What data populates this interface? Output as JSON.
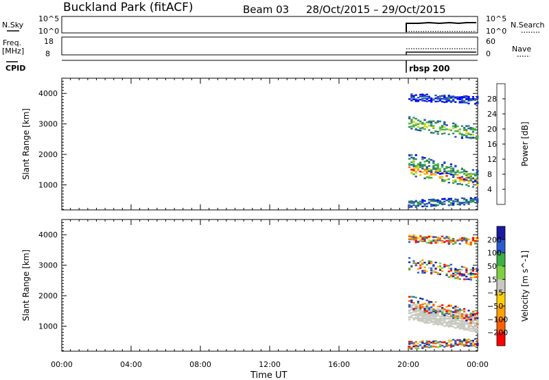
{
  "header": {
    "site_title": "Buckland Park (fitACF)",
    "beam": "Beam 03",
    "date_range": "28/Oct/2015 – 29/Oct/2015"
  },
  "strips": {
    "nsky_label": "N.Sky",
    "nsky_top": "10^5",
    "nsky_bottom": "10^0",
    "nsearch_label": "N.Search",
    "nsearch_top": "10^5",
    "nsearch_bottom": "10^0",
    "freq_label": "Freq.",
    "freq_unit": "[MHz]",
    "freq_top": "18",
    "freq_bottom": "8",
    "nave_label": "Nave",
    "nave_top": "60",
    "nave_bottom": "0",
    "cpid_label": "CPID",
    "cpid_value": "rbsp 200"
  },
  "colors": {
    "power_scale": [
      "#0000ff",
      "#1f4fb0",
      "#2e8b57",
      "#3cb043",
      "#c8d800",
      "#ffb000",
      "#ff6a00",
      "#ff0000"
    ],
    "velocity_scale": [
      "#1a1aa0",
      "#2a5ad0",
      "#3cb043",
      "#7fd040",
      "#c8c8c0",
      "#ffd000",
      "#ffa000",
      "#ff6000",
      "#ff0000"
    ],
    "ground_scatter": "#c8c8c0"
  },
  "chart_data": [
    {
      "type": "heatmap",
      "title": "",
      "xlabel": "Time UT",
      "ylabel": "Slant Range [km]",
      "x_ticks": [
        "00:00",
        "04:00",
        "08:00",
        "12:00",
        "16:00",
        "20:00",
        "00:00"
      ],
      "y_ticks": [
        "1000",
        "2000",
        "3000",
        "4000"
      ],
      "xlim_hours": [
        0,
        24
      ],
      "ylim_km": [
        180,
        4500
      ],
      "colorbar": {
        "label": "Power [dB]",
        "ticks": [
          "4",
          "8",
          "12",
          "16",
          "20",
          "24",
          "28"
        ],
        "range": [
          0,
          32
        ]
      },
      "data_start_hour": 20,
      "bands": [
        {
          "range_start_km": 1550,
          "range_end_km": 1150,
          "level": 28
        },
        {
          "range_start_km": 1850,
          "range_end_km": 1300,
          "level": 14
        },
        {
          "range_start_km": 3050,
          "range_end_km": 2700,
          "level": 18
        },
        {
          "range_start_km": 3900,
          "range_end_km": 3800,
          "level": 6
        },
        {
          "range_start_km": 400,
          "range_end_km": 500,
          "level": 10
        }
      ]
    },
    {
      "type": "heatmap",
      "title": "",
      "xlabel": "Time UT",
      "ylabel": "Slant Range [km]",
      "x_ticks": [
        "00:00",
        "04:00",
        "08:00",
        "12:00",
        "16:00",
        "20:00",
        "00:00"
      ],
      "y_ticks": [
        "1000",
        "2000",
        "3000",
        "4000"
      ],
      "xlim_hours": [
        0,
        24
      ],
      "ylim_km": [
        180,
        4500
      ],
      "colorbar": {
        "label": "Velocity [m s^-1]",
        "ticks": [
          "200",
          "100",
          "50",
          "15",
          "−15",
          "−50",
          "−100",
          "−200"
        ]
      },
      "data_start_hour": 20,
      "ground_scatter_band": {
        "range_start_km": 1500,
        "range_end_km": 1100
      },
      "bands": [
        {
          "range_start_km": 1800,
          "range_end_km": 1300,
          "level": 0
        },
        {
          "range_start_km": 3050,
          "range_end_km": 2700,
          "level": 40
        },
        {
          "range_start_km": 3900,
          "range_end_km": 3800,
          "level": -60
        },
        {
          "range_start_km": 400,
          "range_end_km": 500,
          "level": 20
        }
      ]
    }
  ]
}
